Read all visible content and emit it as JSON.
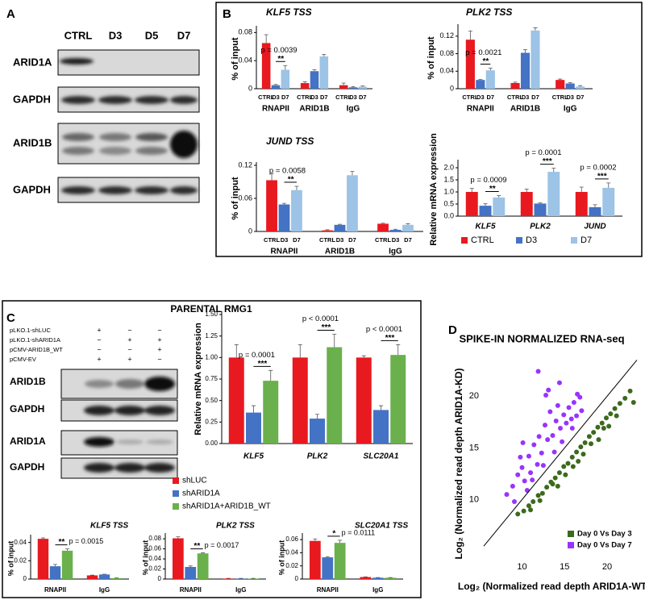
{
  "panel_labels": [
    "A",
    "B",
    "C",
    "D"
  ],
  "blot_a": {
    "lanes": [
      "CTRL",
      "D3",
      "D5",
      "D7"
    ],
    "rows": [
      "ARID1A",
      "GAPDH",
      "ARID1B",
      "GAPDH"
    ]
  },
  "panel_c": {
    "title": "PARENTAL RMG1",
    "conditions": [
      {
        "name": "pLKO.1-shLUC",
        "marks": [
          "+",
          "−",
          "−"
        ]
      },
      {
        "name": "pLKO.1-shARID1A",
        "marks": [
          "−",
          "+",
          "+"
        ]
      },
      {
        "name": "pCMV-ARID1B_WT",
        "marks": [
          "−",
          "−",
          "+"
        ]
      },
      {
        "name": "pCMV-EV",
        "marks": [
          "+",
          "+",
          "−"
        ]
      }
    ],
    "blot_rows": [
      "ARID1B",
      "GAPDH",
      "ARID1A",
      "GAPDH"
    ]
  },
  "chart_data": [
    {
      "type": "bar",
      "title": "KLF5 TSS",
      "y_label": "% of input",
      "categories": [
        "RNAPII",
        "ARID1B",
        "IgG"
      ],
      "series": [
        {
          "name": "CTRL",
          "color": "#e8191f",
          "values": [
            0.065,
            0.008,
            0.005
          ],
          "errors": [
            0.012,
            0.002,
            0.003
          ]
        },
        {
          "name": "D3",
          "color": "#4472c4",
          "values": [
            0.005,
            0.025,
            0.002
          ],
          "errors": [
            0.001,
            0.002,
            0.001
          ]
        },
        {
          "name": "D7",
          "color": "#9dc3e6",
          "values": [
            0.027,
            0.046,
            0.003
          ],
          "errors": [
            0.006,
            0.003,
            0.001
          ]
        }
      ],
      "ylim": [
        0,
        0.085
      ],
      "yticks": [
        0,
        0.04,
        0.08
      ],
      "bar_labels": true,
      "annotations": [
        {
          "category": "RNAPII",
          "text": "p = 0.0039",
          "stars": "**"
        }
      ]
    },
    {
      "type": "bar",
      "title": "PLK2 TSS",
      "y_label": "% of input",
      "categories": [
        "RNAPII",
        "ARID1B",
        "IgG"
      ],
      "series": [
        {
          "name": "CTRL",
          "color": "#e8191f",
          "values": [
            0.112,
            0.013,
            0.02
          ],
          "errors": [
            0.02,
            0.002,
            0.002
          ]
        },
        {
          "name": "D3",
          "color": "#4472c4",
          "values": [
            0.02,
            0.082,
            0.012
          ],
          "errors": [
            0.001,
            0.007,
            0.002
          ]
        },
        {
          "name": "D7",
          "color": "#9dc3e6",
          "values": [
            0.042,
            0.133,
            0.005
          ],
          "errors": [
            0.005,
            0.006,
            0.002
          ]
        }
      ],
      "ylim": [
        0,
        0.14
      ],
      "yticks": [
        0,
        0.04,
        0.08,
        0.12
      ],
      "bar_labels": true,
      "annotations": [
        {
          "category": "RNAPII",
          "text": "p = 0.0021",
          "stars": "**"
        }
      ]
    },
    {
      "type": "bar",
      "title": "JUND TSS",
      "y_label": "% of input",
      "categories": [
        "RNAPII",
        "ARID1B",
        "IgG"
      ],
      "series": [
        {
          "name": "CTRL",
          "color": "#e8191f",
          "values": [
            0.093,
            0.002,
            0.014
          ],
          "errors": [
            0.012,
            0.001,
            0.001
          ]
        },
        {
          "name": "D3",
          "color": "#4472c4",
          "values": [
            0.049,
            0.012,
            0.003
          ],
          "errors": [
            0.002,
            0.001,
            0.001
          ]
        },
        {
          "name": "D7",
          "color": "#9dc3e6",
          "values": [
            0.075,
            0.102,
            0.012
          ],
          "errors": [
            0.007,
            0.007,
            0.002
          ]
        }
      ],
      "ylim": [
        0,
        0.12
      ],
      "yticks": [
        0,
        0.06,
        0.12
      ],
      "bar_labels": true,
      "annotations": [
        {
          "category": "RNAPII",
          "text": "p = 0.0058",
          "stars": "**"
        }
      ]
    },
    {
      "type": "bar",
      "y_label": "Relative mRNA expression",
      "categories": [
        "KLF5",
        "PLK2",
        "JUND"
      ],
      "series": [
        {
          "name": "CTRL",
          "color": "#e8191f",
          "values": [
            1.0,
            1.0,
            1.0
          ],
          "errors": [
            0.15,
            0.12,
            0.2
          ]
        },
        {
          "name": "D3",
          "color": "#4472c4",
          "values": [
            0.43,
            0.52,
            0.37
          ],
          "errors": [
            0.08,
            0.03,
            0.1
          ]
        },
        {
          "name": "D7",
          "color": "#9dc3e6",
          "values": [
            0.77,
            1.83,
            1.17
          ],
          "errors": [
            0.08,
            0.15,
            0.2
          ]
        }
      ],
      "ylim": [
        0,
        2.2
      ],
      "yticks": [
        {
          "value": 0,
          "label": "0.0"
        },
        0.5,
        {
          "value": 1,
          "label": "1.0"
        },
        1.5,
        {
          "value": 2,
          "label": "2.0"
        }
      ],
      "legend": "bottom",
      "annotations": [
        {
          "category": "KLF5",
          "text": "p = 0.0009",
          "stars": "**"
        },
        {
          "category": "PLK2",
          "text": "p = 0.0001",
          "stars": "***"
        },
        {
          "category": "JUND",
          "text": "p = 0.0002",
          "stars": "***"
        }
      ]
    },
    {
      "type": "bar",
      "y_label": "Relative mRNA expression",
      "categories": [
        "KLF5",
        "PLK2",
        "SLC20A1"
      ],
      "series": [
        {
          "name": "shLUC",
          "color": "#e8191f",
          "values": [
            1.0,
            1.0,
            1.0
          ],
          "errors": [
            0.15,
            0.15,
            0.02
          ]
        },
        {
          "name": "shARID1A",
          "color": "#4472c4",
          "values": [
            0.36,
            0.29,
            0.39
          ],
          "errors": [
            0.08,
            0.05,
            0.05
          ]
        },
        {
          "name": "shARID1A+ARID1B_WT",
          "color": "#6ab04c",
          "values": [
            0.73,
            1.12,
            1.03
          ],
          "errors": [
            0.12,
            0.15,
            0.12
          ]
        }
      ],
      "ylim": [
        0,
        1.5
      ],
      "yticks": [
        {
          "value": 0,
          "label": "0.00"
        },
        0.25,
        {
          "value": 0.5,
          "label": "0.50"
        },
        0.75,
        {
          "value": 1,
          "label": "1.00"
        },
        1.25,
        {
          "value": 1.5,
          "label": "1.50"
        }
      ],
      "legend": "left",
      "annotations": [
        {
          "category": "KLF5",
          "text": "p = 0.0001",
          "stars": "***"
        },
        {
          "category": "PLK2",
          "text": "p < 0.0001",
          "stars": "***"
        },
        {
          "category": "SLC20A1",
          "text": "p < 0.0001",
          "stars": "***"
        }
      ]
    },
    {
      "type": "bar",
      "title": "KLF5 TSS",
      "y_label": "% of input",
      "categories": [
        "RNAPII",
        "IgG"
      ],
      "series": [
        {
          "color": "#e8191f",
          "values": [
            0.044,
            0.004
          ],
          "errors": [
            0.001,
            0.0003
          ]
        },
        {
          "color": "#4472c4",
          "values": [
            0.014,
            0.005
          ],
          "errors": [
            0.002,
            0.0003
          ]
        },
        {
          "color": "#6ab04c",
          "values": [
            0.031,
            0.001
          ],
          "errors": [
            0.002,
            0.0003
          ]
        }
      ],
      "ylim": [
        0,
        0.045
      ],
      "yticks": [
        0,
        0.02,
        0.04
      ],
      "annotations": [
        {
          "category": "RNAPII",
          "text": "p = 0.0015",
          "stars": "**"
        }
      ]
    },
    {
      "type": "bar",
      "title": "PLK2 TSS",
      "y_label": "% of input",
      "categories": [
        "RNAPII",
        "IgG"
      ],
      "series": [
        {
          "color": "#e8191f",
          "values": [
            0.081,
            0.001
          ],
          "errors": [
            0.003,
            0.0003
          ]
        },
        {
          "color": "#4472c4",
          "values": [
            0.024,
            0.001
          ],
          "errors": [
            0.002,
            0.0003
          ]
        },
        {
          "color": "#6ab04c",
          "values": [
            0.051,
            0.001
          ],
          "errors": [
            0.001,
            0.0003
          ]
        }
      ],
      "ylim": [
        0,
        0.085
      ],
      "yticks": [
        0,
        0.02,
        0.04,
        0.06,
        0.08
      ],
      "annotations": [
        {
          "category": "RNAPII",
          "text": "p = 0.0017",
          "stars": "**"
        }
      ]
    },
    {
      "type": "bar",
      "title": "SLC20A1 TSS",
      "y_label": "% of input",
      "categories": [
        "RNAPII",
        "IgG"
      ],
      "series": [
        {
          "color": "#e8191f",
          "values": [
            0.058,
            0.003
          ],
          "errors": [
            0.003,
            0.0003
          ]
        },
        {
          "color": "#4472c4",
          "values": [
            0.033,
            0.002
          ],
          "errors": [
            0.001,
            0.0003
          ]
        },
        {
          "color": "#6ab04c",
          "values": [
            0.055,
            0.002
          ],
          "errors": [
            0.004,
            0.0003
          ]
        }
      ],
      "ylim": [
        0,
        0.065
      ],
      "yticks": [
        0,
        0.02,
        0.04,
        0.06
      ],
      "annotations": [
        {
          "category": "RNAPII",
          "text": "p = 0.0111",
          "stars": "*"
        }
      ]
    },
    {
      "type": "scatter",
      "title": "SPIKE-IN NORMALIZED RNA-seq",
      "x_label": "Log₂ (Normalized read depth ARID1A-WT)",
      "y_label": "Log₂ (Normalized read depth ARID1A-KD)",
      "series": [
        {
          "name": "Day 0 Vs Day 3",
          "color": "#3b6a1c",
          "x": [
            9.5,
            10.2,
            10.8,
            11.3,
            11.9,
            12.4,
            12.9,
            13.4,
            13.9,
            14.4,
            14.9,
            15.4,
            15.9,
            16.4,
            16.9,
            17.4,
            17.9,
            18.4,
            18.9,
            19.4,
            19.9,
            20.4,
            20.9,
            21.5,
            22.1,
            12.1,
            13.6,
            15.1,
            16.6,
            18.1,
            19.6,
            21.1,
            14.2,
            17.2,
            20.2,
            11,
            22.7,
            23.1,
            19,
            16
          ],
          "y": [
            8.6,
            8.9,
            9.4,
            9.8,
            10.4,
            10.6,
            11.2,
            11.7,
            12.1,
            12.6,
            13.2,
            13.5,
            14.1,
            14.6,
            15.1,
            15.5,
            16.1,
            16.5,
            17,
            17.4,
            17.9,
            18.3,
            18.8,
            19.3,
            19.8,
            9.9,
            11.5,
            12.4,
            13.7,
            15.4,
            16.9,
            18.1,
            11.3,
            14.4,
            17.1,
            9,
            20.5,
            19.4,
            15.8,
            13.2
          ]
        },
        {
          "name": "Day 0 Vs Day 7",
          "color": "#9933ff",
          "x": [
            8.2,
            8.9,
            9.5,
            10,
            10.3,
            10.8,
            11,
            11.4,
            11.8,
            12,
            12.3,
            12.7,
            13,
            13.3,
            13.6,
            14,
            14.2,
            14.5,
            14.9,
            15.2,
            15.5,
            15.8,
            16.1,
            16.4,
            16.8,
            17,
            9.1,
            10.6,
            11.2,
            12.5,
            13.8,
            14.7,
            15.9,
            11.9,
            12.8,
            10.1,
            9.8,
            13.1,
            16.5,
            14.4
          ],
          "y": [
            10.5,
            11.3,
            12.4,
            13.1,
            11.8,
            14.2,
            12.6,
            15.3,
            13.4,
            16.1,
            14.5,
            17.2,
            15.8,
            18.5,
            16.2,
            17.6,
            19.1,
            16.9,
            18.2,
            17.4,
            18.9,
            17.8,
            19.4,
            18.1,
            19.9,
            18.6,
            9.8,
            10.9,
            11.9,
            13.3,
            14.6,
            15.6,
            16.9,
            22.4,
            20.1,
            15.5,
            14.1,
            20.6,
            20.2,
            21.3
          ]
        }
      ],
      "xlim": [
        5.5,
        23.5
      ],
      "ylim": [
        4.5,
        24
      ],
      "xticks": [
        10,
        15,
        20
      ],
      "yticks": [
        10,
        15,
        20
      ],
      "identity_line": true,
      "legend": "lower right"
    }
  ]
}
